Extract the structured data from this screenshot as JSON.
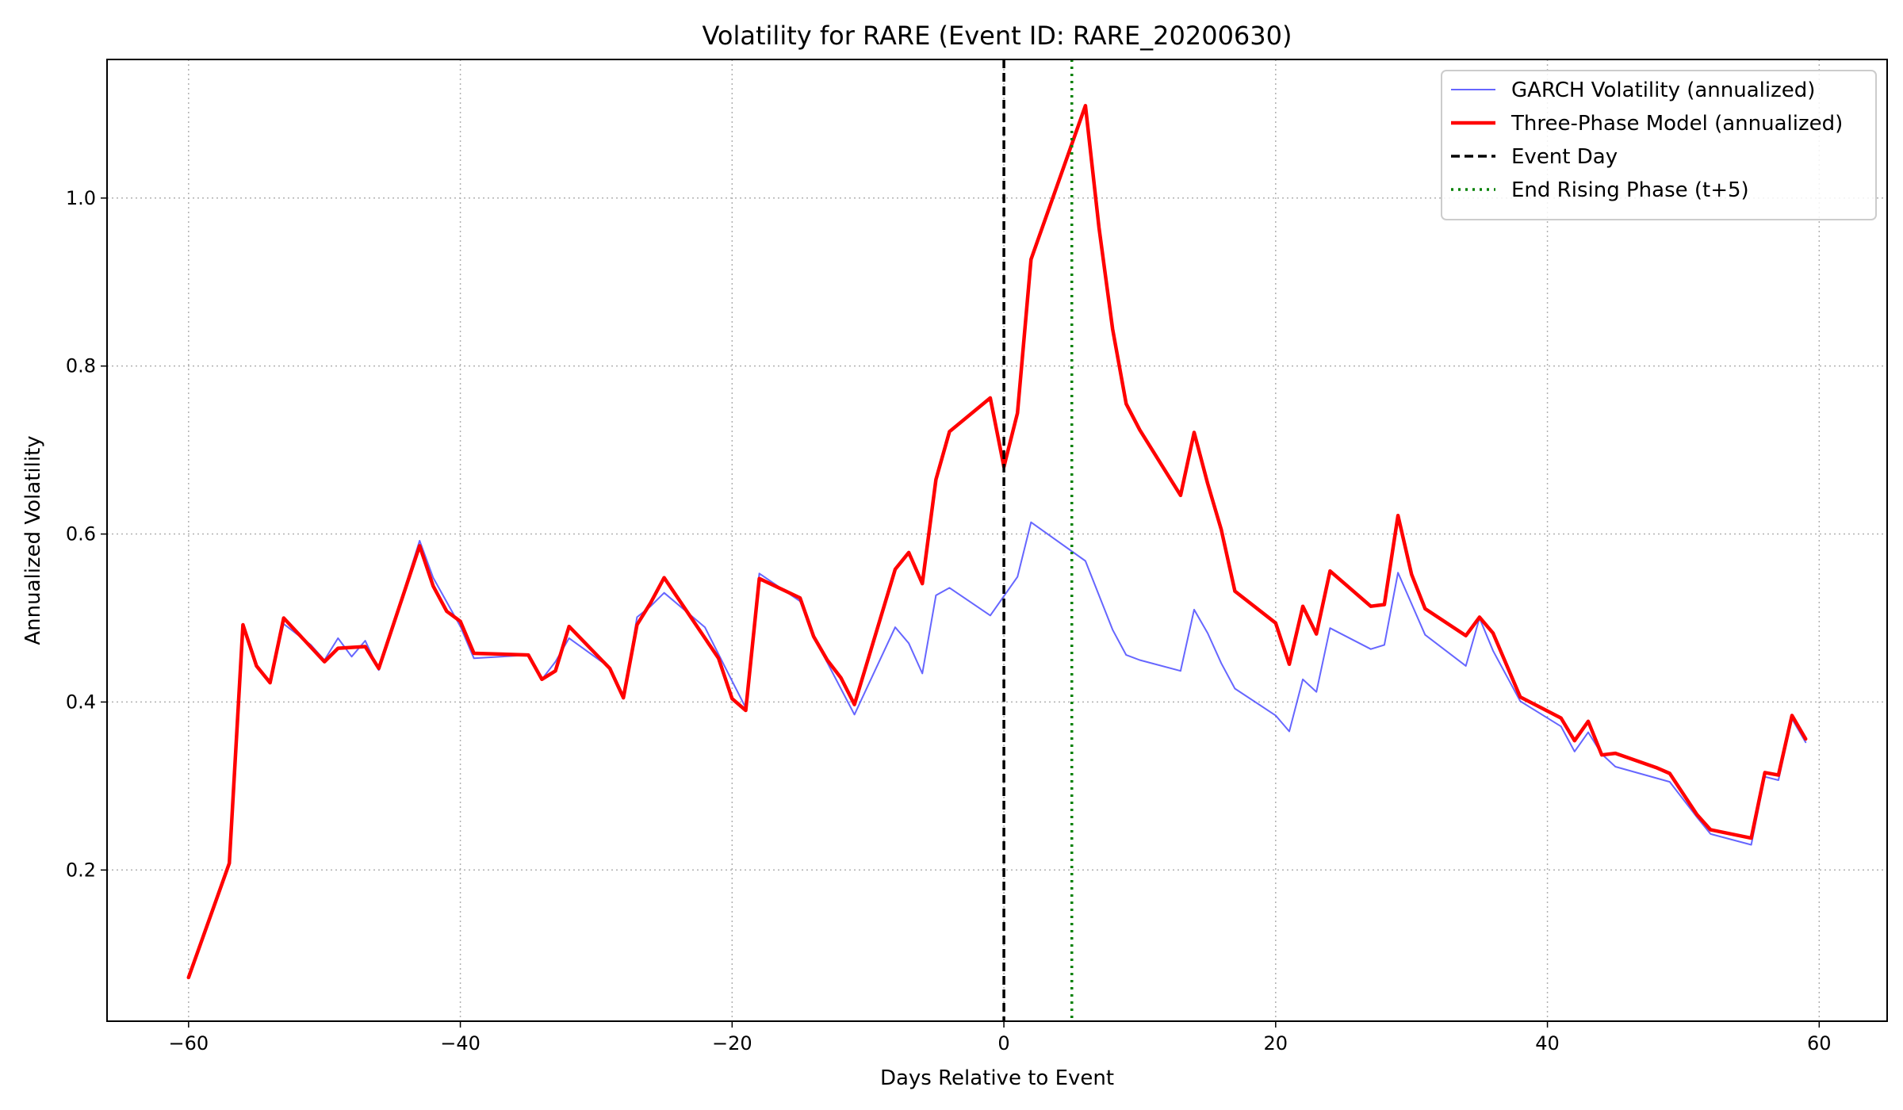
{
  "chart_data": {
    "type": "line",
    "title": "Volatility for RARE (Event ID: RARE_20200630)",
    "xlabel": "Days Relative to Event",
    "ylabel": "Annualized Volatility",
    "xlim": [
      -66,
      65
    ],
    "ylim": [
      0.02,
      1.165
    ],
    "xticks": [
      -60,
      -40,
      -20,
      0,
      20,
      40,
      60
    ],
    "xtick_labels": [
      "−60",
      "−40",
      "−20",
      "0",
      "20",
      "40",
      "60"
    ],
    "yticks": [
      0.2,
      0.4,
      0.6,
      0.8,
      1.0
    ],
    "ytick_labels": [
      "0.2",
      "0.4",
      "0.6",
      "0.8",
      "1.0"
    ],
    "grid": true,
    "legend_position": "top-right",
    "series": [
      {
        "name": "GARCH Volatility (annualized)",
        "color": "#3333ff",
        "style": "solid-thin",
        "points": [
          [
            -60,
            0.072
          ],
          [
            -57,
            0.208
          ],
          [
            -56,
            0.49
          ],
          [
            -55,
            0.443
          ],
          [
            -54,
            0.423
          ],
          [
            -53,
            0.493
          ],
          [
            -51,
            0.468
          ],
          [
            -50,
            0.45
          ],
          [
            -49,
            0.476
          ],
          [
            -48,
            0.454
          ],
          [
            -47,
            0.473
          ],
          [
            -46,
            0.438
          ],
          [
            -43,
            0.592
          ],
          [
            -42,
            0.548
          ],
          [
            -40,
            0.49
          ],
          [
            -39,
            0.452
          ],
          [
            -35,
            0.456
          ],
          [
            -34,
            0.427
          ],
          [
            -33,
            0.448
          ],
          [
            -32,
            0.476
          ],
          [
            -29,
            0.441
          ],
          [
            -28,
            0.404
          ],
          [
            -27,
            0.501
          ],
          [
            -26,
            0.514
          ],
          [
            -25,
            0.53
          ],
          [
            -22,
            0.489
          ],
          [
            -20,
            0.425
          ],
          [
            -19,
            0.393
          ],
          [
            -18,
            0.553
          ],
          [
            -15,
            0.52
          ],
          [
            -14,
            0.478
          ],
          [
            -13,
            0.447
          ],
          [
            -11,
            0.385
          ],
          [
            -8,
            0.489
          ],
          [
            -7,
            0.47
          ],
          [
            -6,
            0.434
          ],
          [
            -5,
            0.527
          ],
          [
            -4,
            0.536
          ],
          [
            -1,
            0.503
          ],
          [
            1,
            0.549
          ],
          [
            2,
            0.614
          ],
          [
            6,
            0.568
          ],
          [
            8,
            0.486
          ],
          [
            9,
            0.456
          ],
          [
            10,
            0.45
          ],
          [
            13,
            0.437
          ],
          [
            14,
            0.51
          ],
          [
            15,
            0.482
          ],
          [
            16,
            0.446
          ],
          [
            17,
            0.416
          ],
          [
            20,
            0.384
          ],
          [
            21,
            0.365
          ],
          [
            22,
            0.427
          ],
          [
            23,
            0.412
          ],
          [
            24,
            0.488
          ],
          [
            27,
            0.463
          ],
          [
            28,
            0.468
          ],
          [
            29,
            0.554
          ],
          [
            31,
            0.48
          ],
          [
            34,
            0.443
          ],
          [
            35,
            0.5
          ],
          [
            36,
            0.461
          ],
          [
            38,
            0.401
          ],
          [
            41,
            0.371
          ],
          [
            42,
            0.341
          ],
          [
            43,
            0.364
          ],
          [
            44,
            0.338
          ],
          [
            45,
            0.323
          ],
          [
            49,
            0.305
          ],
          [
            51,
            0.263
          ],
          [
            52,
            0.243
          ],
          [
            55,
            0.23
          ],
          [
            56,
            0.311
          ],
          [
            57,
            0.307
          ],
          [
            58,
            0.38
          ],
          [
            59,
            0.352
          ]
        ]
      },
      {
        "name": "Three-Phase Model (annualized)",
        "color": "#ff0000",
        "style": "solid-thick",
        "points": [
          [
            -60,
            0.072
          ],
          [
            -57,
            0.208
          ],
          [
            -56,
            0.492
          ],
          [
            -55,
            0.443
          ],
          [
            -54,
            0.423
          ],
          [
            -53,
            0.5
          ],
          [
            -50,
            0.448
          ],
          [
            -49,
            0.464
          ],
          [
            -47,
            0.466
          ],
          [
            -46,
            0.44
          ],
          [
            -43,
            0.586
          ],
          [
            -42,
            0.538
          ],
          [
            -41,
            0.508
          ],
          [
            -40,
            0.496
          ],
          [
            -39,
            0.458
          ],
          [
            -35,
            0.456
          ],
          [
            -34,
            0.427
          ],
          [
            -33,
            0.437
          ],
          [
            -32,
            0.49
          ],
          [
            -29,
            0.44
          ],
          [
            -28,
            0.405
          ],
          [
            -27,
            0.492
          ],
          [
            -26,
            0.518
          ],
          [
            -25,
            0.548
          ],
          [
            -21,
            0.452
          ],
          [
            -20,
            0.404
          ],
          [
            -19,
            0.39
          ],
          [
            -18,
            0.547
          ],
          [
            -15,
            0.524
          ],
          [
            -14,
            0.478
          ],
          [
            -13,
            0.45
          ],
          [
            -12,
            0.429
          ],
          [
            -11,
            0.397
          ],
          [
            -8,
            0.558
          ],
          [
            -7,
            0.578
          ],
          [
            -6,
            0.541
          ],
          [
            -5,
            0.665
          ],
          [
            -4,
            0.722
          ],
          [
            -1,
            0.762
          ],
          [
            0,
            0.68
          ],
          [
            1,
            0.744
          ],
          [
            2,
            0.927
          ],
          [
            6,
            1.11
          ],
          [
            7,
            0.965
          ],
          [
            8,
            0.844
          ],
          [
            9,
            0.755
          ],
          [
            10,
            0.724
          ],
          [
            13,
            0.646
          ],
          [
            14,
            0.721
          ],
          [
            15,
            0.66
          ],
          [
            16,
            0.605
          ],
          [
            17,
            0.532
          ],
          [
            20,
            0.494
          ],
          [
            21,
            0.445
          ],
          [
            22,
            0.514
          ],
          [
            23,
            0.481
          ],
          [
            24,
            0.556
          ],
          [
            27,
            0.514
          ],
          [
            28,
            0.516
          ],
          [
            29,
            0.622
          ],
          [
            30,
            0.552
          ],
          [
            31,
            0.511
          ],
          [
            34,
            0.479
          ],
          [
            35,
            0.501
          ],
          [
            36,
            0.482
          ],
          [
            38,
            0.406
          ],
          [
            41,
            0.381
          ],
          [
            42,
            0.354
          ],
          [
            43,
            0.377
          ],
          [
            44,
            0.337
          ],
          [
            45,
            0.339
          ],
          [
            48,
            0.322
          ],
          [
            49,
            0.315
          ],
          [
            51,
            0.266
          ],
          [
            52,
            0.248
          ],
          [
            55,
            0.238
          ],
          [
            56,
            0.316
          ],
          [
            57,
            0.313
          ],
          [
            58,
            0.384
          ],
          [
            59,
            0.356
          ]
        ]
      },
      {
        "name": "Event Day",
        "color": "#000000",
        "style": "dashed-vertical",
        "x": 0
      },
      {
        "name": "End Rising Phase (t+5)",
        "color": "#008000",
        "style": "dotted-vertical",
        "x": 5
      }
    ]
  }
}
